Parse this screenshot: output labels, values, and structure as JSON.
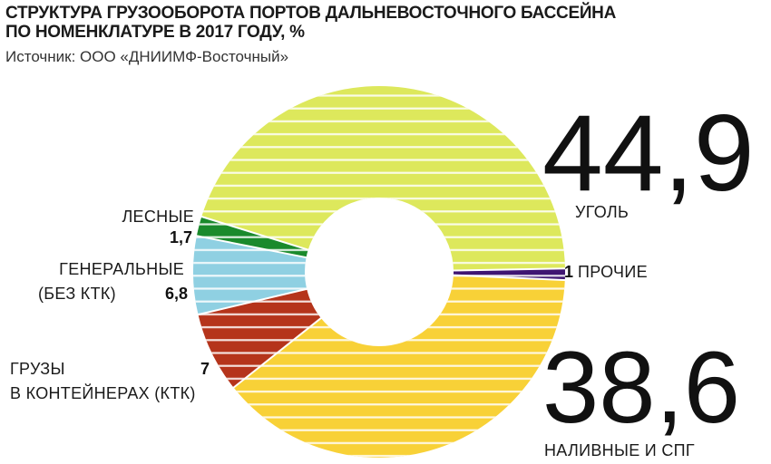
{
  "header": {
    "title_line1": "СТРУКТУРА ГРУЗООБОРОТА ПОРТОВ ДАЛЬНЕВОСТОЧНОГО БАССЕЙНА",
    "title_line2": "ПО НОМЕНКЛАТУРЕ В 2017 ГОДУ, %",
    "source": "Источник: ООО «ДНИИМФ-Восточный»"
  },
  "chart_data": {
    "type": "pie",
    "donut": true,
    "title": "СТРУКТУРА ГРУЗООБОРОТА ПОРТОВ ДАЛЬНЕВОСТОЧНОГО БАССЕЙНА ПО НОМЕНКЛАТУРЕ В 2017 ГОДУ, %",
    "unit": "%",
    "slices": [
      {
        "id": "coal",
        "label": "УГОЛЬ",
        "value_label": "44,9",
        "value": 44.9,
        "color": "#dde85c"
      },
      {
        "id": "other",
        "label": "ПРОЧИЕ",
        "value_label": "1",
        "value": 1,
        "color": "#3f1572"
      },
      {
        "id": "liquid",
        "label": "НАЛИВНЫЕ И СПГ",
        "value_label": "38,6",
        "value": 38.6,
        "color": "#f8d137"
      },
      {
        "id": "containers",
        "label_line1": "ГРУЗЫ",
        "label_line2": "В КОНТЕЙНЕРАХ (КТК)",
        "value_label": "7",
        "value": 7,
        "color": "#b5341b"
      },
      {
        "id": "general",
        "label_line1": "ГЕНЕРАЛЬНЫЕ",
        "label_line2": "(БЕЗ КТК)",
        "value_label": "6,8",
        "value": 6.8,
        "color": "#8fd0e2"
      },
      {
        "id": "timber",
        "label": "ЛЕСНЫЕ",
        "value_label": "1,7",
        "value": 1.7,
        "color": "#1a8a2c"
      }
    ]
  }
}
